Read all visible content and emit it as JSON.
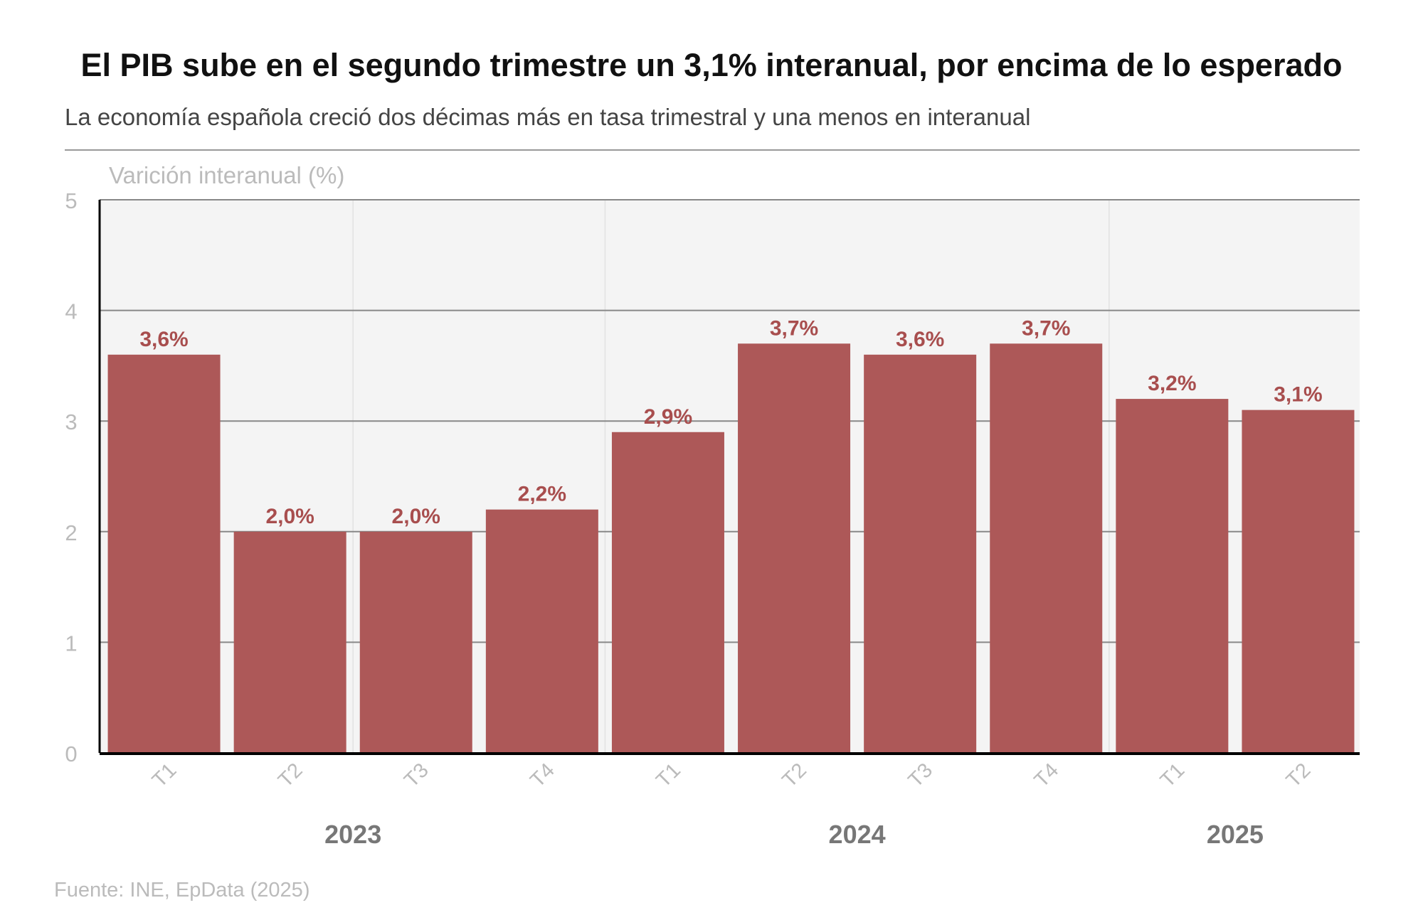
{
  "title": "El PIB sube en el segundo trimestre un 3,1% interanual, por encima de lo esperado",
  "subtitle": "La economía española creció dos décimas más en tasa trimestral y una menos en interanual",
  "source": "Fuente: INE, EpData (2025)",
  "chart_data": {
    "type": "bar",
    "ylabel": "Varición interanual (%)",
    "ylim": [
      0,
      5
    ],
    "yticks": [
      0,
      1,
      2,
      3,
      4,
      5
    ],
    "grid": true,
    "categories": [
      "T1",
      "T2",
      "T3",
      "T4",
      "T1",
      "T2",
      "T3",
      "T4",
      "T1",
      "T2"
    ],
    "years": [
      {
        "label": "2023",
        "quarters": [
          "T1",
          "T2",
          "T3",
          "T4"
        ]
      },
      {
        "label": "2024",
        "quarters": [
          "T1",
          "T2",
          "T3",
          "T4"
        ]
      },
      {
        "label": "2025",
        "quarters": [
          "T1",
          "T2"
        ]
      }
    ],
    "values": [
      3.6,
      2.0,
      2.0,
      2.2,
      2.9,
      3.7,
      3.6,
      3.7,
      3.2,
      3.1
    ],
    "data_labels": [
      "3,6%",
      "2,0%",
      "2,0%",
      "2,2%",
      "2,9%",
      "3,7%",
      "3,6%",
      "3,7%",
      "3,2%",
      "3,1%"
    ],
    "colors": {
      "bar": "#ad5858",
      "label": "#a84e4e",
      "plot_bg": "#f4f4f4"
    }
  }
}
